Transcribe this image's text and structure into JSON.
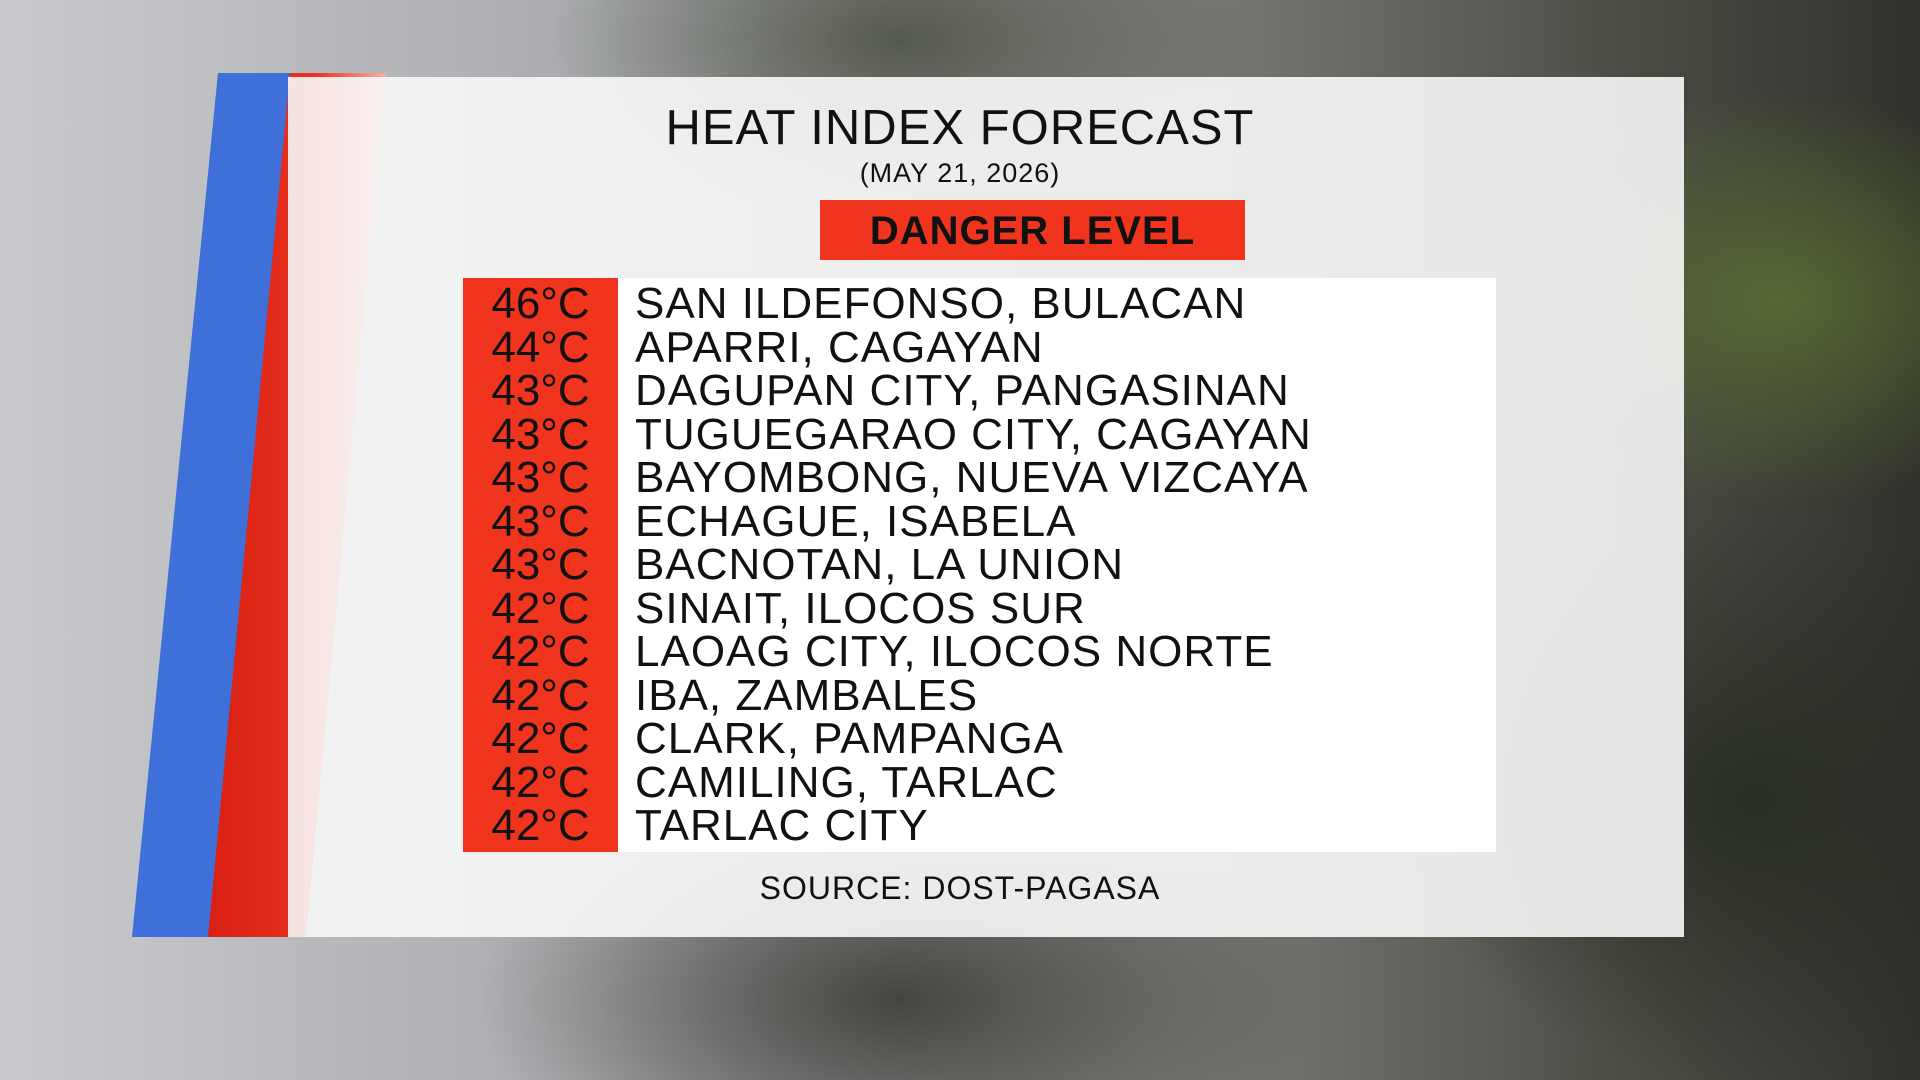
{
  "header": {
    "title": "HEAT INDEX FORECAST",
    "date": "(MAY 21, 2026)",
    "level": "DANGER LEVEL"
  },
  "table": {
    "rows": [
      [
        "46°C",
        "SAN ILDEFONSO, BULACAN"
      ],
      [
        "44°C",
        "APARRI, CAGAYAN"
      ],
      [
        "43°C",
        "DAGUPAN CITY, PANGASINAN"
      ],
      [
        "43°C",
        "TUGUEGARAO CITY, CAGAYAN"
      ],
      [
        "43°C",
        "BAYOMBONG, NUEVA VIZCAYA"
      ],
      [
        "43°C",
        "ECHAGUE, ISABELA"
      ],
      [
        "43°C",
        "BACNOTAN, LA UNION"
      ],
      [
        "42°C",
        "SINAIT, ILOCOS SUR"
      ],
      [
        "42°C",
        "LAOAG CITY, ILOCOS NORTE"
      ],
      [
        "42°C",
        "IBA, ZAMBALES"
      ],
      [
        "42°C",
        "CLARK, PAMPANGA"
      ],
      [
        "42°C",
        "CAMILING, TARLAC"
      ],
      [
        "42°C",
        "TARLAC CITY"
      ]
    ]
  },
  "footer": {
    "source": "SOURCE: DOST-PAGASA"
  }
}
